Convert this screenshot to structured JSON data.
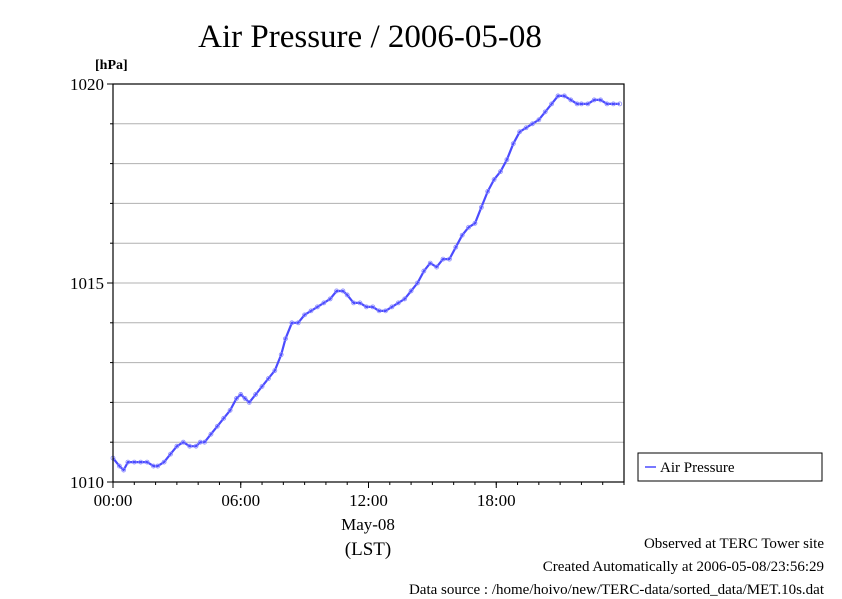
{
  "chart_data": {
    "type": "line",
    "title": "Air Pressure / 2006-05-08",
    "ylabel": "[hPa]",
    "xlabel_date": "May-08",
    "xlabel_zone": "(LST)",
    "ylim": [
      1010,
      1020
    ],
    "xlim": [
      0,
      24
    ],
    "y_ticks": [
      {
        "value": 1010,
        "label": "1010"
      },
      {
        "value": 1015,
        "label": "1015"
      },
      {
        "value": 1020,
        "label": "1020"
      }
    ],
    "x_ticks": [
      {
        "value": 0,
        "label": "00:00"
      },
      {
        "value": 6,
        "label": "06:00"
      },
      {
        "value": 12,
        "label": "12:00"
      },
      {
        "value": 18,
        "label": "18:00"
      }
    ],
    "grid": true,
    "grid_y_step": 1,
    "legend_position": "right",
    "series": [
      {
        "name": "Air Pressure",
        "color": "#4b4bff",
        "x": [
          0.0,
          0.3,
          0.5,
          0.7,
          1.0,
          1.3,
          1.6,
          1.9,
          2.1,
          2.4,
          2.7,
          3.0,
          3.3,
          3.6,
          3.9,
          4.1,
          4.3,
          4.6,
          4.9,
          5.2,
          5.5,
          5.8,
          6.0,
          6.2,
          6.4,
          6.7,
          7.0,
          7.3,
          7.6,
          7.9,
          8.1,
          8.4,
          8.7,
          9.0,
          9.3,
          9.6,
          9.9,
          10.2,
          10.5,
          10.8,
          11.0,
          11.3,
          11.6,
          11.9,
          12.2,
          12.5,
          12.8,
          13.1,
          13.4,
          13.7,
          14.0,
          14.3,
          14.6,
          14.9,
          15.2,
          15.5,
          15.8,
          16.1,
          16.4,
          16.7,
          17.0,
          17.3,
          17.6,
          17.9,
          18.2,
          18.5,
          18.8,
          19.1,
          19.4,
          19.7,
          20.0,
          20.3,
          20.6,
          20.9,
          21.2,
          21.5,
          21.8,
          22.0,
          22.3,
          22.6,
          22.9,
          23.2,
          23.5,
          23.8
        ],
        "y": [
          1010.6,
          1010.4,
          1010.3,
          1010.5,
          1010.5,
          1010.5,
          1010.5,
          1010.4,
          1010.4,
          1010.5,
          1010.7,
          1010.9,
          1011.0,
          1010.9,
          1010.9,
          1011.0,
          1011.0,
          1011.2,
          1011.4,
          1011.6,
          1011.8,
          1012.1,
          1012.2,
          1012.1,
          1012.0,
          1012.2,
          1012.4,
          1012.6,
          1012.8,
          1013.2,
          1013.6,
          1014.0,
          1014.0,
          1014.2,
          1014.3,
          1014.4,
          1014.5,
          1014.6,
          1014.8,
          1014.8,
          1014.7,
          1014.5,
          1014.5,
          1014.4,
          1014.4,
          1014.3,
          1014.3,
          1014.4,
          1014.5,
          1014.6,
          1014.8,
          1015.0,
          1015.3,
          1015.5,
          1015.4,
          1015.6,
          1015.6,
          1015.9,
          1016.2,
          1016.4,
          1016.5,
          1016.9,
          1017.3,
          1017.6,
          1017.8,
          1018.1,
          1018.5,
          1018.8,
          1018.9,
          1019.0,
          1019.1,
          1019.3,
          1019.5,
          1019.7,
          1019.7,
          1019.6,
          1019.5,
          1019.5,
          1019.5,
          1019.6,
          1019.6,
          1019.5,
          1019.5,
          1019.5
        ]
      }
    ]
  },
  "footer": {
    "line1": "Observed at TERC Tower site",
    "line2": "Created Automatically at 2006-05-08/23:56:29",
    "line3": "Data source : /home/hoivo/new/TERC-data/sorted_data/MET.10s.dat"
  }
}
